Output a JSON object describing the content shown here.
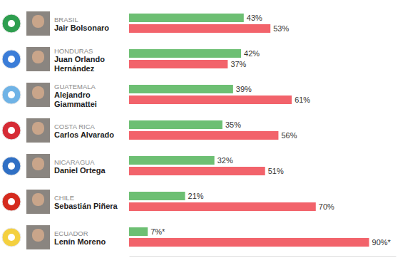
{
  "chart_data": {
    "type": "bar",
    "orientation": "horizontal",
    "categories": [
      [
        "BRASIL",
        "Jair Bolsonaro"
      ],
      [
        "HONDURAS",
        "Juan Orlando",
        "Hernández"
      ],
      [
        "GUATEMALA",
        "Alejandro",
        "Giammattei"
      ],
      [
        "COSTA RICA",
        "Carlos Alvarado"
      ],
      [
        "NICARAGUA",
        "Daniel Ortega"
      ],
      [
        "CHILE",
        "Sebastián Piñera"
      ],
      [
        "ECUADOR",
        "Lenín Moreno"
      ]
    ],
    "series": [
      {
        "color": "#6dbf73",
        "values": [
          43,
          42,
          39,
          35,
          32,
          21,
          7
        ],
        "value_labels": [
          "43%",
          "42%",
          "39%",
          "35%",
          "32%",
          "21%",
          "7%*"
        ]
      },
      {
        "color": "#f2636b",
        "values": [
          53,
          37,
          61,
          56,
          51,
          70,
          90
        ],
        "value_labels": [
          "53%",
          "37%",
          "61%",
          "56%",
          "51%",
          "70%",
          "90%*"
        ]
      }
    ],
    "xlim": [
      0,
      100
    ],
    "data_labels": true,
    "tick_labels": false
  }
}
